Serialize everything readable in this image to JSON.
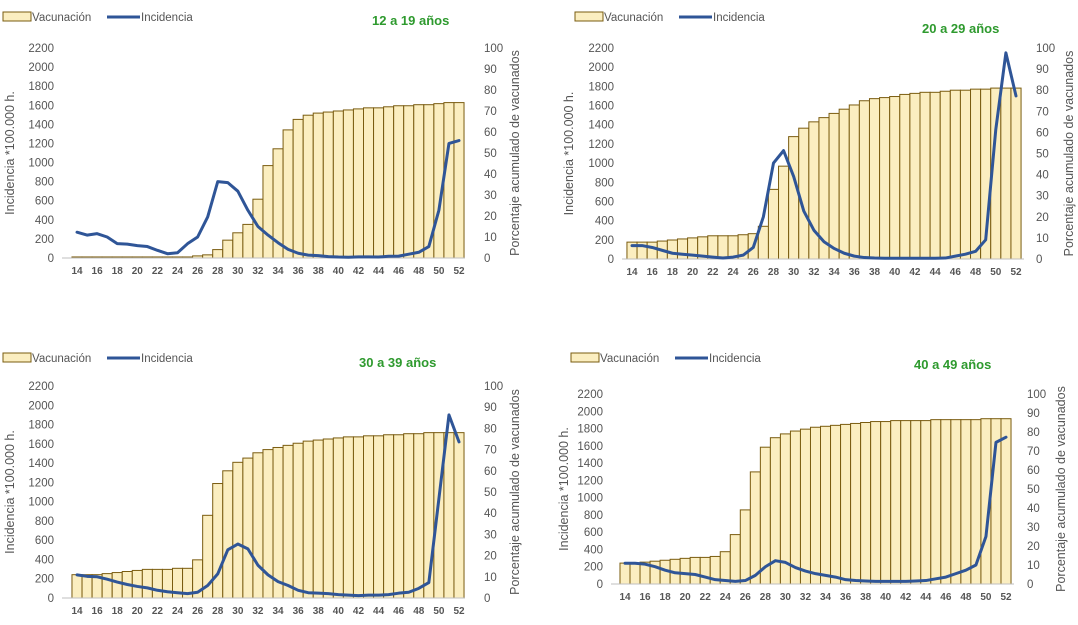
{
  "chart_data": [
    {
      "type": "bar",
      "title": "12 a 19 años",
      "legend": [
        "Vacunación",
        "Incidencia"
      ],
      "ylabel": "Incidencia *100.000 h.",
      "y2label": "Porcentaje acumulado de vacunados",
      "ylim": [
        0,
        2200
      ],
      "y2lim": [
        0,
        100
      ],
      "yticks": [
        "0",
        "200",
        "400",
        "600",
        "800",
        "1000",
        "1200",
        "1400",
        "1600",
        "1800",
        "2000",
        "2200"
      ],
      "y2ticks": [
        "0",
        "10",
        "20",
        "30",
        "40",
        "50",
        "60",
        "70",
        "80",
        "90",
        "100"
      ],
      "xticks": [
        "14",
        "16",
        "18",
        "20",
        "22",
        "24",
        "26",
        "28",
        "30",
        "32",
        "34",
        "36",
        "38",
        "40",
        "42",
        "44",
        "46",
        "48",
        "50",
        "52"
      ],
      "x": [
        14,
        15,
        16,
        17,
        18,
        19,
        20,
        21,
        22,
        23,
        24,
        25,
        26,
        27,
        28,
        29,
        30,
        31,
        32,
        33,
        34,
        35,
        36,
        37,
        38,
        39,
        40,
        41,
        42,
        43,
        44,
        45,
        46,
        47,
        48,
        49,
        50,
        51,
        52
      ],
      "series": [
        {
          "name": "Vacunación",
          "axis": "right",
          "values": [
            0.5,
            0.5,
            0.5,
            0.5,
            0.5,
            0.5,
            0.5,
            0.5,
            0.5,
            0.5,
            0.5,
            0.5,
            1,
            1.5,
            4,
            8.5,
            12,
            16,
            28,
            44,
            52,
            61,
            66,
            68,
            69,
            69.5,
            70,
            70.5,
            71,
            71.5,
            71.5,
            72,
            72.5,
            72.5,
            73,
            73,
            73.5,
            74,
            74
          ]
        },
        {
          "name": "Incidencia",
          "axis": "left",
          "values": [
            270,
            240,
            255,
            220,
            150,
            145,
            130,
            120,
            80,
            45,
            55,
            150,
            220,
            430,
            800,
            790,
            700,
            500,
            330,
            240,
            160,
            90,
            50,
            30,
            25,
            15,
            10,
            8,
            12,
            12,
            10,
            18,
            20,
            40,
            60,
            120,
            500,
            1200,
            1230
          ]
        }
      ]
    },
    {
      "type": "bar",
      "title": "20 a 29 años",
      "legend": [
        "Vacunación",
        "Incidencia"
      ],
      "ylabel": "Incidencia *100.000 h.",
      "y2label": "Porcentaje acumulado de vacunados",
      "ylim": [
        0,
        2200
      ],
      "y2lim": [
        0,
        100
      ],
      "yticks": [
        "0",
        "200",
        "400",
        "600",
        "800",
        "1000",
        "1200",
        "1400",
        "1600",
        "1800",
        "2000",
        "2200"
      ],
      "y2ticks": [
        "0",
        "10",
        "20",
        "30",
        "40",
        "50",
        "60",
        "70",
        "80",
        "90",
        "100"
      ],
      "xticks": [
        "14",
        "16",
        "18",
        "20",
        "22",
        "24",
        "26",
        "28",
        "30",
        "32",
        "34",
        "36",
        "38",
        "40",
        "42",
        "44",
        "46",
        "48",
        "50",
        "52"
      ],
      "x": [
        14,
        15,
        16,
        17,
        18,
        19,
        20,
        21,
        22,
        23,
        24,
        25,
        26,
        27,
        28,
        29,
        30,
        31,
        32,
        33,
        34,
        35,
        36,
        37,
        38,
        39,
        40,
        41,
        42,
        43,
        44,
        45,
        46,
        47,
        48,
        49,
        50,
        51,
        52
      ],
      "series": [
        {
          "name": "Vacunación",
          "axis": "right",
          "values": [
            8,
            8,
            8,
            8.5,
            9,
            9.5,
            10,
            10.5,
            11,
            11,
            11,
            11.5,
            12,
            15.5,
            33,
            44,
            58,
            62,
            65,
            67,
            69,
            71,
            73,
            75,
            76,
            76.5,
            77,
            78,
            78.5,
            79,
            79,
            79.5,
            80,
            80,
            80.5,
            80.5,
            81,
            81,
            81
          ]
        },
        {
          "name": "Incidencia",
          "axis": "left",
          "values": [
            140,
            140,
            120,
            90,
            60,
            50,
            40,
            30,
            20,
            10,
            20,
            40,
            120,
            440,
            1000,
            1130,
            860,
            500,
            300,
            180,
            110,
            60,
            30,
            15,
            10,
            8,
            8,
            8,
            8,
            8,
            8,
            10,
            30,
            50,
            80,
            200,
            1350,
            2150,
            1700
          ]
        }
      ]
    },
    {
      "type": "bar",
      "title": "30 a 39 años",
      "legend": [
        "Vacunación",
        "Incidencia"
      ],
      "ylabel": "Incidencia *100.000 h.",
      "y2label": "Porcentaje acumulado de vacunados",
      "ylim": [
        0,
        2200
      ],
      "y2lim": [
        0,
        100
      ],
      "yticks": [
        "0",
        "200",
        "400",
        "600",
        "800",
        "1000",
        "1200",
        "1400",
        "1600",
        "1800",
        "2000",
        "2200"
      ],
      "y2ticks": [
        "0",
        "10",
        "20",
        "30",
        "40",
        "50",
        "60",
        "70",
        "80",
        "90",
        "100"
      ],
      "xticks": [
        "14",
        "16",
        "18",
        "20",
        "22",
        "24",
        "26",
        "28",
        "30",
        "32",
        "34",
        "36",
        "38",
        "40",
        "42",
        "44",
        "46",
        "48",
        "50",
        "52"
      ],
      "x": [
        14,
        15,
        16,
        17,
        18,
        19,
        20,
        21,
        22,
        23,
        24,
        25,
        26,
        27,
        28,
        29,
        30,
        31,
        32,
        33,
        34,
        35,
        36,
        37,
        38,
        39,
        40,
        41,
        42,
        43,
        44,
        45,
        46,
        47,
        48,
        49,
        50,
        51,
        52
      ],
      "series": [
        {
          "name": "Vacunación",
          "axis": "right",
          "values": [
            11,
            11,
            11,
            11.5,
            12,
            12.5,
            13,
            13.5,
            13.5,
            13.5,
            14,
            14,
            18,
            39,
            54,
            60,
            64,
            66,
            68.5,
            70,
            71,
            72,
            73,
            74,
            74.5,
            75,
            75.5,
            76,
            76,
            76.5,
            76.5,
            77,
            77,
            77.5,
            77.5,
            78,
            78,
            78,
            78
          ]
        },
        {
          "name": "Incidencia",
          "axis": "left",
          "values": [
            240,
            225,
            220,
            195,
            165,
            140,
            120,
            105,
            80,
            65,
            55,
            45,
            60,
            130,
            250,
            500,
            560,
            510,
            340,
            240,
            170,
            130,
            80,
            55,
            50,
            45,
            35,
            30,
            25,
            30,
            30,
            35,
            50,
            60,
            100,
            160,
            1030,
            1900,
            1620
          ]
        }
      ]
    },
    {
      "type": "bar",
      "title": "40 a 49 años",
      "legend": [
        "Vacunación",
        "Incidencia"
      ],
      "ylabel": "Incidencia *100.000 h.",
      "y2label": "Porcentaje acumulado de vacunados",
      "ylim": [
        0,
        2200
      ],
      "y2lim": [
        0,
        100
      ],
      "yticks": [
        "0",
        "200",
        "400",
        "600",
        "800",
        "1000",
        "1200",
        "1400",
        "1600",
        "1800",
        "2000",
        "2200"
      ],
      "y2ticks": [
        "0",
        "10",
        "20",
        "30",
        "40",
        "50",
        "60",
        "70",
        "80",
        "90",
        "100"
      ],
      "xticks": [
        "14",
        "16",
        "18",
        "20",
        "22",
        "24",
        "26",
        "28",
        "30",
        "32",
        "34",
        "36",
        "38",
        "40",
        "42",
        "44",
        "46",
        "48",
        "50",
        "52"
      ],
      "x": [
        14,
        15,
        16,
        17,
        18,
        19,
        20,
        21,
        22,
        23,
        24,
        25,
        26,
        27,
        28,
        29,
        30,
        31,
        32,
        33,
        34,
        35,
        36,
        37,
        38,
        39,
        40,
        41,
        42,
        43,
        44,
        45,
        46,
        47,
        48,
        49,
        50,
        51,
        52
      ],
      "series": [
        {
          "name": "Vacunación",
          "axis": "right",
          "values": [
            11,
            11,
            11.5,
            12,
            12.5,
            13,
            13.5,
            14,
            14,
            14.5,
            17,
            26,
            39,
            59,
            72,
            77,
            79,
            80.5,
            81.5,
            82.5,
            83,
            83.5,
            84,
            84.5,
            85,
            85.5,
            85.5,
            86,
            86,
            86,
            86,
            86.5,
            86.5,
            86.5,
            86.5,
            86.5,
            87,
            87,
            87
          ]
        },
        {
          "name": "Incidencia",
          "axis": "left",
          "values": [
            240,
            240,
            230,
            200,
            160,
            130,
            120,
            110,
            80,
            50,
            40,
            30,
            40,
            100,
            200,
            270,
            250,
            190,
            150,
            120,
            100,
            80,
            50,
            40,
            35,
            30,
            30,
            30,
            30,
            35,
            40,
            60,
            80,
            120,
            160,
            220,
            550,
            1640,
            1700
          ]
        }
      ]
    }
  ]
}
